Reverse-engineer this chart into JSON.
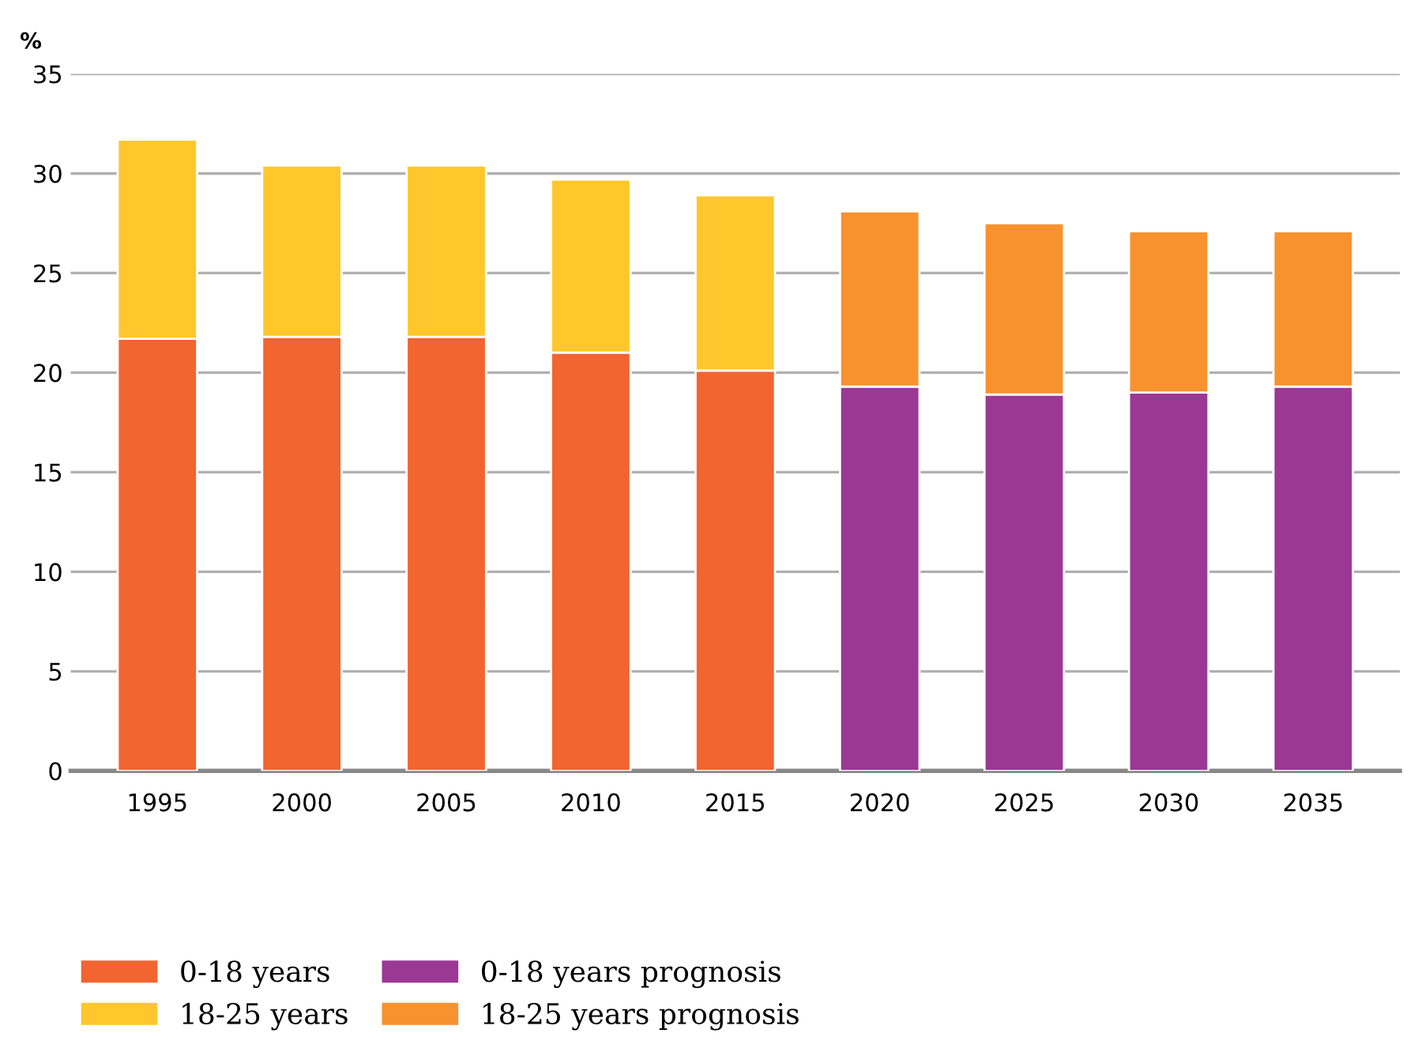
{
  "chart_data": {
    "type": "bar",
    "stacked": true,
    "ylabel": "%",
    "categories": [
      "1995",
      "2000",
      "2005",
      "2010",
      "2015",
      "2020",
      "2025",
      "2030",
      "2035"
    ],
    "series": [
      {
        "name": "0-18 years",
        "color": "#f26430",
        "values": [
          21.7,
          21.8,
          21.8,
          21.0,
          20.1,
          null,
          null,
          null,
          null
        ]
      },
      {
        "name": "0-18 years prognosis",
        "color": "#9b3894",
        "values": [
          null,
          null,
          null,
          null,
          null,
          19.3,
          18.9,
          19.0,
          19.3
        ]
      },
      {
        "name": "18-25 years",
        "color": "#ffc72c",
        "values": [
          10.0,
          8.6,
          8.6,
          8.7,
          8.8,
          null,
          null,
          null,
          null
        ]
      },
      {
        "name": "18-25 years prognosis",
        "color": "#f7922e",
        "values": [
          null,
          null,
          null,
          null,
          null,
          8.8,
          8.6,
          8.1,
          7.8
        ]
      }
    ],
    "ylim": [
      0,
      35
    ],
    "yticks": [
      0,
      5,
      10,
      15,
      20,
      25,
      30,
      35
    ],
    "grid": "y",
    "legend": "bottom left"
  }
}
